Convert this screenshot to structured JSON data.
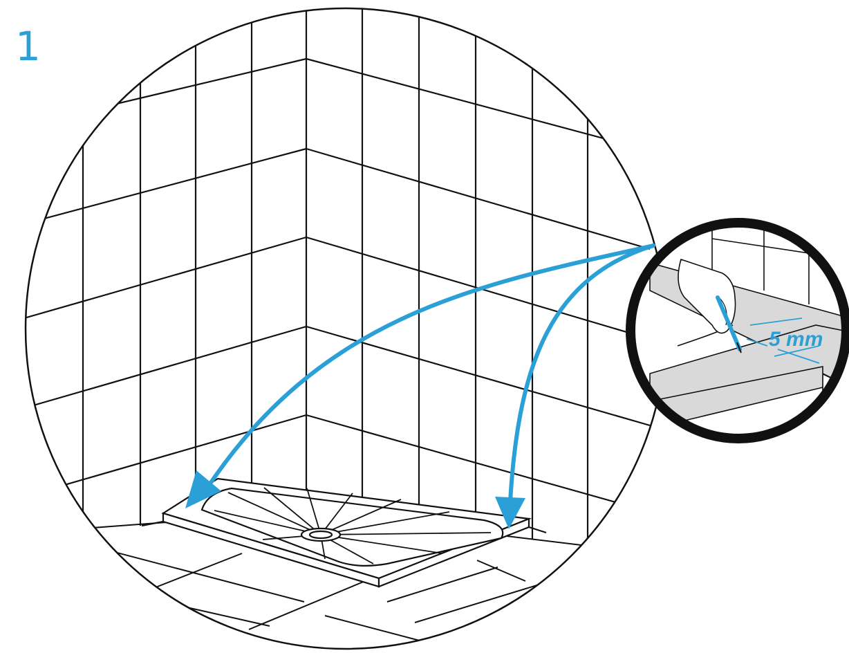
{
  "step": {
    "number": "1"
  },
  "callout": {
    "dimension_label": "5 mm"
  },
  "colors": {
    "accent": "#2aa0d6",
    "line": "#111111",
    "callout_ring": "#111111",
    "callout_fill": "#d9d9d9",
    "paper": "#ffffff"
  },
  "icons": {
    "hand": "hand-holding-pencil-icon",
    "pencil": "pencil-icon",
    "arrow": "arrow-icon"
  }
}
